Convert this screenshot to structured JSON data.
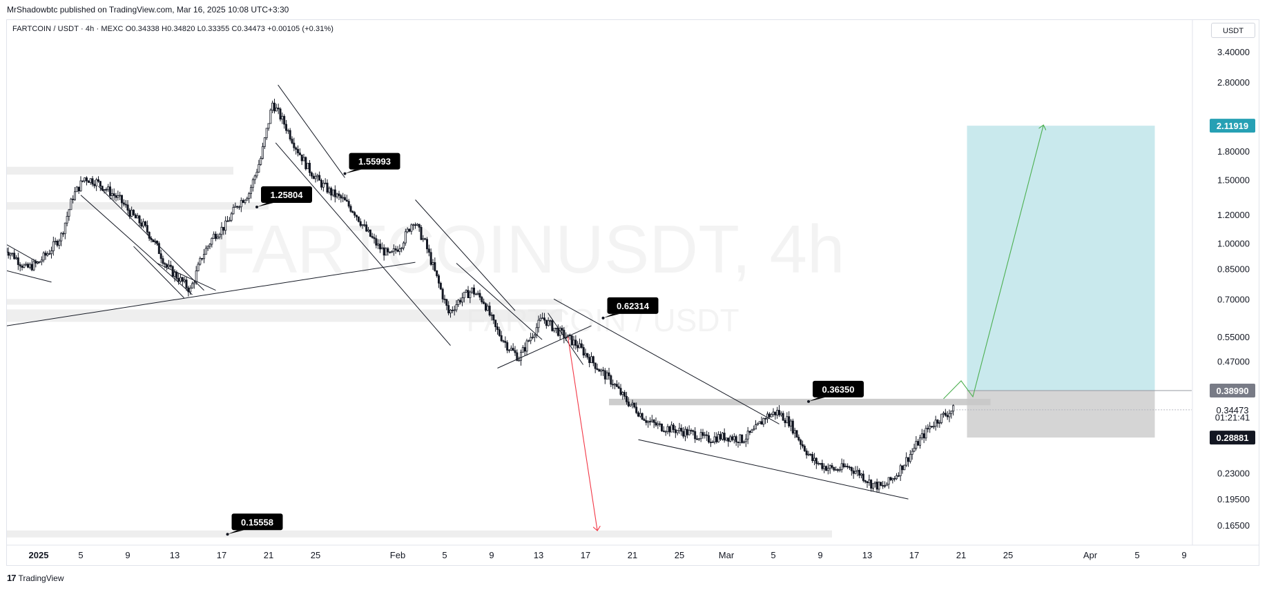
{
  "header": {
    "publisher": "MrShadowbtc published on TradingView.com, Mar 16, 2025 10:08 UTC+3:30",
    "symbol_line": "FARTCOIN / USDT · 4h · MEXC  O0.34338  H0.34820  L0.33355  C0.34473  +0.00105 (+0.31%)",
    "currency": "USDT"
  },
  "watermark": {
    "main": "FARTCOINUSDT, 4h",
    "sub": "FARTCOIN / USDT"
  },
  "footer": {
    "logo": "17",
    "brand": "TradingView"
  },
  "colors": {
    "candle": "#131722",
    "target_zone": "#b2e0e6",
    "stop_zone": "#c7c7c7",
    "up_projection": "#4caf50",
    "down_projection": "#f23645",
    "target_label": "#26a0b4",
    "current_line": "#b2b5be"
  },
  "chart_data": {
    "type": "candlestick",
    "symbol": "FARTCOIN / USDT",
    "interval": "4h",
    "exchange": "MEXC",
    "ohlc_last": {
      "open": 0.34338,
      "high": 0.3482,
      "low": 0.33355,
      "close": 0.34473,
      "change": 0.00105,
      "change_pct": 0.31
    },
    "scale": "log",
    "y_ticks": [
      "3.40000",
      "2.80000",
      "1.80000",
      "1.50000",
      "1.20000",
      "1.00000",
      "0.85000",
      "0.70000",
      "0.55000",
      "0.47000",
      "0.34473",
      "0.23000",
      "0.19500",
      "0.16500"
    ],
    "y_tick_values": [
      3.4,
      2.8,
      1.8,
      1.5,
      1.2,
      1.0,
      0.85,
      0.7,
      0.55,
      0.47,
      0.34473,
      0.23,
      0.195,
      0.165
    ],
    "x_ticks": [
      "2025",
      "5",
      "9",
      "13",
      "17",
      "21",
      "25",
      "Feb",
      "5",
      "9",
      "13",
      "17",
      "21",
      "25",
      "Mar",
      "5",
      "9",
      "13",
      "17",
      "21",
      "25",
      "Apr",
      "5",
      "9"
    ],
    "x_tick_days": [
      0,
      4,
      8,
      12,
      16,
      20,
      24,
      31,
      35,
      39,
      43,
      47,
      51,
      55,
      59,
      63,
      67,
      71,
      75,
      79,
      83,
      90,
      94,
      98
    ],
    "x_tick_bold": [
      true,
      false,
      false,
      false,
      false,
      false,
      false,
      false,
      false,
      false,
      false,
      false,
      false,
      false,
      false,
      false,
      false,
      false,
      false,
      false,
      false,
      false,
      false,
      false
    ],
    "price_points": [
      [
        -2.5,
        0.98
      ],
      [
        -1.5,
        0.92
      ],
      [
        -0.5,
        0.85
      ],
      [
        0.5,
        0.88
      ],
      [
        1.5,
        0.95
      ],
      [
        2.5,
        1.05
      ],
      [
        3.5,
        1.35
      ],
      [
        4.5,
        1.52
      ],
      [
        5.5,
        1.48
      ],
      [
        6.5,
        1.4
      ],
      [
        7.5,
        1.32
      ],
      [
        8.5,
        1.2
      ],
      [
        9.5,
        1.12
      ],
      [
        10.5,
        1.0
      ],
      [
        11.5,
        0.86
      ],
      [
        12.5,
        0.8
      ],
      [
        13.5,
        0.74
      ],
      [
        14.5,
        0.92
      ],
      [
        15.5,
        1.05
      ],
      [
        16.5,
        1.12
      ],
      [
        17.5,
        1.28
      ],
      [
        18.5,
        1.38
      ],
      [
        19.5,
        1.72
      ],
      [
        20.5,
        2.45
      ],
      [
        21.5,
        2.15
      ],
      [
        22.5,
        1.85
      ],
      [
        23.5,
        1.62
      ],
      [
        24.5,
        1.48
      ],
      [
        25.5,
        1.38
      ],
      [
        26.5,
        1.32
      ],
      [
        27.5,
        1.22
      ],
      [
        28.5,
        1.08
      ],
      [
        29.5,
        0.98
      ],
      [
        30.5,
        0.92
      ],
      [
        31.5,
        1.0
      ],
      [
        32.5,
        1.16
      ],
      [
        33.5,
        1.0
      ],
      [
        34.5,
        0.8
      ],
      [
        35.5,
        0.64
      ],
      [
        36.5,
        0.7
      ],
      [
        37.5,
        0.74
      ],
      [
        38.5,
        0.69
      ],
      [
        39.5,
        0.58
      ],
      [
        40.5,
        0.52
      ],
      [
        41.5,
        0.48
      ],
      [
        42.5,
        0.55
      ],
      [
        43.5,
        0.62
      ],
      [
        44.5,
        0.58
      ],
      [
        45.5,
        0.55
      ],
      [
        46.5,
        0.52
      ],
      [
        47.5,
        0.48
      ],
      [
        48.5,
        0.44
      ],
      [
        49.5,
        0.41
      ],
      [
        50.5,
        0.37
      ],
      [
        51.5,
        0.345
      ],
      [
        52.5,
        0.32
      ],
      [
        53.5,
        0.31
      ],
      [
        54.5,
        0.305
      ],
      [
        55.5,
        0.3
      ],
      [
        56.5,
        0.295
      ],
      [
        57.5,
        0.285
      ],
      [
        58.5,
        0.29
      ],
      [
        59.5,
        0.29
      ],
      [
        60.5,
        0.285
      ],
      [
        61.5,
        0.3
      ],
      [
        62.5,
        0.33
      ],
      [
        63.5,
        0.34
      ],
      [
        64.5,
        0.32
      ],
      [
        65.5,
        0.28
      ],
      [
        66.5,
        0.25
      ],
      [
        67.5,
        0.24
      ],
      [
        68.5,
        0.235
      ],
      [
        69.5,
        0.24
      ],
      [
        70.5,
        0.23
      ],
      [
        71.5,
        0.215
      ],
      [
        72.5,
        0.21
      ],
      [
        73.5,
        0.225
      ],
      [
        74.5,
        0.25
      ],
      [
        75.5,
        0.28
      ],
      [
        76.5,
        0.31
      ],
      [
        77.5,
        0.33
      ],
      [
        78.5,
        0.345
      ]
    ],
    "annotations": [
      {
        "label": "1.55993",
        "day": 26.5,
        "price": 1.56
      },
      {
        "label": "1.25804",
        "day": 19.0,
        "price": 1.26
      },
      {
        "label": "0.62314",
        "day": 48.5,
        "price": 0.62
      },
      {
        "label": "0.36350",
        "day": 66.0,
        "price": 0.3635
      },
      {
        "label": "0.15558",
        "day": 16.5,
        "price": 0.1556
      }
    ],
    "price_labels": [
      {
        "label": "2.11919",
        "value": 2.11919,
        "style": "target"
      },
      {
        "label": "0.38990",
        "value": 0.3899,
        "style": "grey"
      },
      {
        "label": "0.34473",
        "value": 0.34473,
        "style": "plain"
      },
      {
        "label": "01:21:41",
        "value": 0.329,
        "style": "plain"
      },
      {
        "label": "0.28881",
        "value": 0.28881,
        "style": "dark"
      }
    ],
    "position": {
      "entry": 0.3899,
      "target": 2.11919,
      "stop": 0.28881,
      "day_start": 79.5,
      "day_end": 95.5
    },
    "zones": [
      {
        "name": "supply-1",
        "price_hi": 1.63,
        "price_lo": 1.55,
        "day_start": -3,
        "day_end": 17
      },
      {
        "name": "supply-2",
        "price_hi": 1.3,
        "price_lo": 1.24,
        "day_start": -3,
        "day_end": 20
      },
      {
        "name": "zone-3",
        "price_hi": 0.7,
        "price_lo": 0.675,
        "day_start": -3,
        "day_end": 45
      },
      {
        "name": "zone-4",
        "price_hi": 0.655,
        "price_lo": 0.605,
        "day_start": -3,
        "day_end": 45
      },
      {
        "name": "zone-5",
        "price_hi": 0.37,
        "price_lo": 0.355,
        "day_start": 49,
        "day_end": 81.5
      },
      {
        "name": "zone-6",
        "price_hi": 0.1595,
        "price_lo": 0.1525,
        "day_start": -3,
        "day_end": 68
      }
    ],
    "trendlines": [
      [
        [
          -3,
          1.02
        ],
        [
          0.5,
          0.88
        ]
      ],
      [
        [
          -3,
          0.85
        ],
        [
          1.5,
          0.78
        ]
      ],
      [
        [
          -3,
          0.585
        ],
        [
          32.5,
          0.885
        ]
      ],
      [
        [
          5.5,
          1.44
        ],
        [
          14.5,
          0.74
        ]
      ],
      [
        [
          4.0,
          1.36
        ],
        [
          13.5,
          0.72
        ]
      ],
      [
        [
          8.5,
          0.98
        ],
        [
          12.8,
          0.705
        ]
      ],
      [
        [
          10.5,
          0.88
        ],
        [
          15.5,
          0.74
        ]
      ],
      [
        [
          20.8,
          2.75
        ],
        [
          26.5,
          1.52
        ]
      ],
      [
        [
          20.6,
          1.9
        ],
        [
          35.5,
          0.52
        ]
      ],
      [
        [
          32.5,
          1.32
        ],
        [
          41.0,
          0.65
        ]
      ],
      [
        [
          36.0,
          0.88
        ],
        [
          43.3,
          0.54
        ]
      ],
      [
        [
          39.5,
          0.45
        ],
        [
          47.5,
          0.59
        ]
      ],
      [
        [
          44.3,
          0.7
        ],
        [
          63.5,
          0.315
        ]
      ],
      [
        [
          43.8,
          0.64
        ],
        [
          46.8,
          0.46
        ]
      ],
      [
        [
          51.5,
          0.285
        ],
        [
          74.5,
          0.195
        ]
      ]
    ],
    "projections": [
      {
        "color": "up",
        "points": [
          [
            77.5,
            0.37
          ],
          [
            79.0,
            0.415
          ],
          [
            80.0,
            0.375
          ],
          [
            86.0,
            2.11919
          ]
        ]
      },
      {
        "color": "down",
        "points": [
          [
            45.5,
            0.55
          ],
          [
            48.0,
            0.16
          ]
        ]
      }
    ],
    "current_price": 0.34473
  }
}
